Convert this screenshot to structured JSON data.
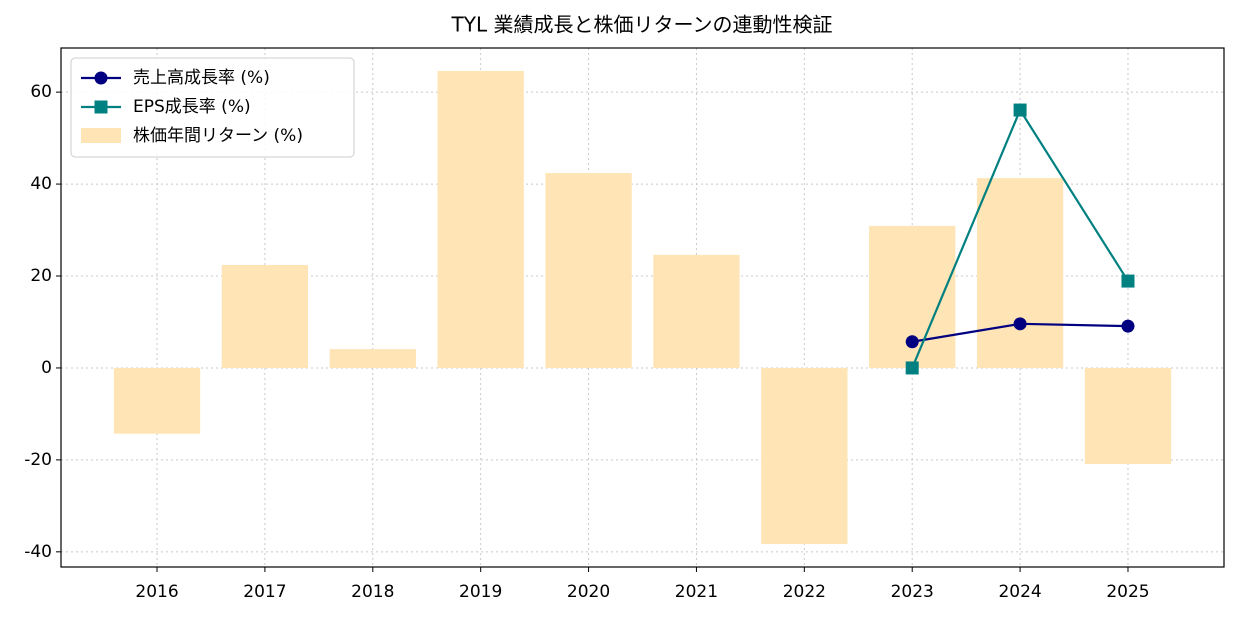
{
  "chart_data": {
    "type": "combo",
    "title": "TYL 業績成長と株価リターンの連動性検証",
    "categories": [
      "2016",
      "2017",
      "2018",
      "2019",
      "2020",
      "2021",
      "2022",
      "2023",
      "2024",
      "2025"
    ],
    "series": [
      {
        "name": "株価年間リターン (%)",
        "type": "bar",
        "color": "#ffe4b5",
        "values": [
          -14.3,
          22.4,
          4.1,
          64.6,
          42.4,
          24.6,
          -38.3,
          30.9,
          41.3,
          -20.9
        ]
      },
      {
        "name": "売上高成長率 (%)",
        "type": "line",
        "marker": "circle",
        "color": "#000080",
        "values": [
          null,
          null,
          null,
          null,
          null,
          null,
          null,
          5.7,
          9.6,
          9.1
        ]
      },
      {
        "name": "EPS成長率 (%)",
        "type": "line",
        "marker": "square",
        "color": "#008080",
        "values": [
          null,
          null,
          null,
          null,
          null,
          null,
          null,
          0.0,
          56.1,
          18.9
        ]
      }
    ],
    "ylim": [
      -43.3,
      69.6
    ],
    "yticks": [
      -40,
      -20,
      0,
      20,
      40,
      60
    ],
    "grid": true,
    "legend": "upper-left"
  }
}
